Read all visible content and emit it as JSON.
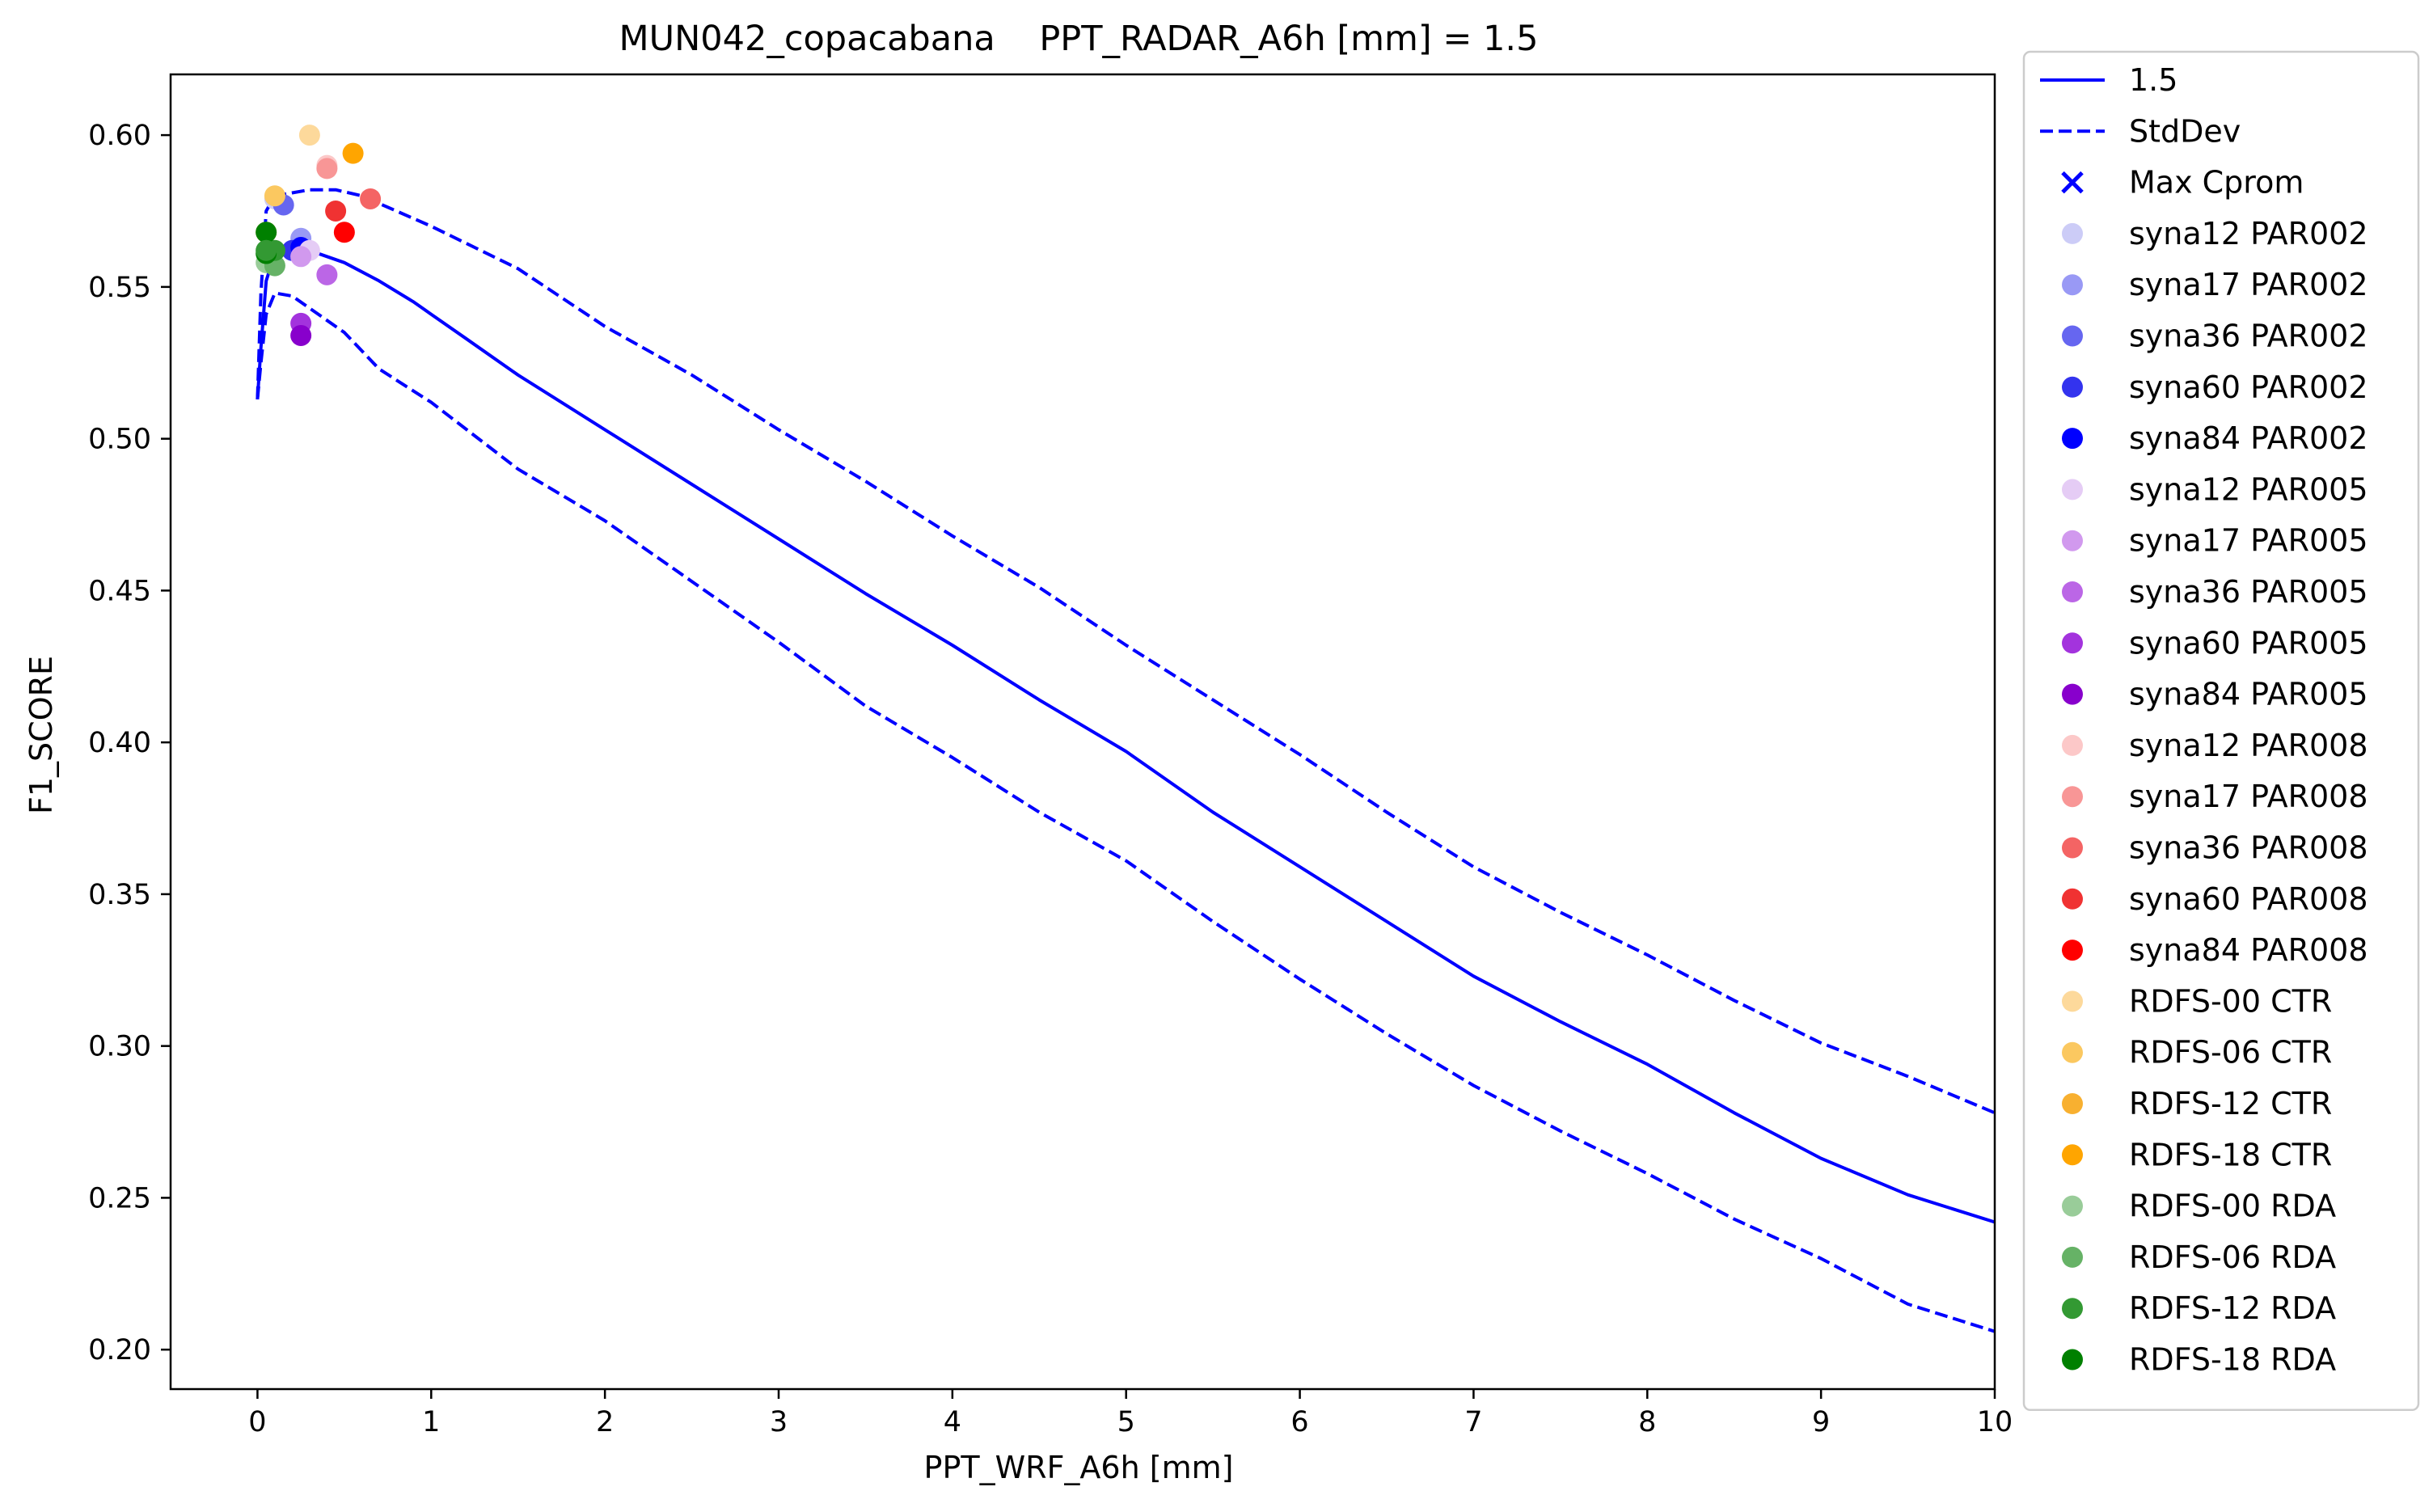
{
  "chart_data": {
    "type": "line",
    "title": "MUN042_copacabana    PPT_RADAR_A6h [mm] = 1.5",
    "xlabel": "PPT_WRF_A6h [mm]",
    "ylabel": "F1_SCORE",
    "xlim": [
      -0.5,
      10
    ],
    "ylim": [
      0.187,
      0.62
    ],
    "xticks": [
      0,
      1,
      2,
      3,
      4,
      5,
      6,
      7,
      8,
      9,
      10
    ],
    "yticks": [
      0.2,
      0.25,
      0.3,
      0.35,
      0.4,
      0.45,
      0.5,
      0.55,
      0.6
    ],
    "xtick_labels": [
      "0",
      "1",
      "2",
      "3",
      "4",
      "5",
      "6",
      "7",
      "8",
      "9",
      "10"
    ],
    "ytick_labels": [
      "0.20",
      "0.25",
      "0.30",
      "0.35",
      "0.40",
      "0.45",
      "0.50",
      "0.55",
      "0.60"
    ],
    "legend_position": "outside-right",
    "series": [
      {
        "name": "1.5",
        "style": "solid",
        "color": "#0000ff",
        "points": [
          [
            0.0,
            0.513
          ],
          [
            0.02,
            0.53
          ],
          [
            0.05,
            0.552
          ],
          [
            0.1,
            0.561
          ],
          [
            0.2,
            0.563
          ],
          [
            0.3,
            0.562
          ],
          [
            0.5,
            0.558
          ],
          [
            0.7,
            0.552
          ],
          [
            0.9,
            0.545
          ],
          [
            1.0,
            0.541
          ],
          [
            1.2,
            0.533
          ],
          [
            1.5,
            0.521
          ],
          [
            2.0,
            0.503
          ],
          [
            2.5,
            0.485
          ],
          [
            3.0,
            0.467
          ],
          [
            3.5,
            0.449
          ],
          [
            4.0,
            0.432
          ],
          [
            4.5,
            0.414
          ],
          [
            5.0,
            0.397
          ],
          [
            5.5,
            0.377
          ],
          [
            6.0,
            0.359
          ],
          [
            6.5,
            0.341
          ],
          [
            7.0,
            0.323
          ],
          [
            7.5,
            0.308
          ],
          [
            8.0,
            0.294
          ],
          [
            8.5,
            0.278
          ],
          [
            9.0,
            0.263
          ],
          [
            9.5,
            0.251
          ],
          [
            10.0,
            0.242
          ]
        ]
      },
      {
        "name": "StdDev",
        "style": "dashed",
        "color": "#0000ff",
        "points": [
          [
            0.0,
            0.513
          ],
          [
            0.02,
            0.548
          ],
          [
            0.05,
            0.575
          ],
          [
            0.1,
            0.58
          ],
          [
            0.2,
            0.581
          ],
          [
            0.3,
            0.582
          ],
          [
            0.45,
            0.582
          ],
          [
            0.6,
            0.58
          ],
          [
            0.8,
            0.575
          ],
          [
            1.0,
            0.57
          ],
          [
            1.5,
            0.556
          ],
          [
            2.0,
            0.537
          ],
          [
            2.5,
            0.521
          ],
          [
            3.0,
            0.503
          ],
          [
            3.5,
            0.486
          ],
          [
            4.0,
            0.468
          ],
          [
            4.5,
            0.451
          ],
          [
            5.0,
            0.432
          ],
          [
            5.5,
            0.414
          ],
          [
            6.0,
            0.396
          ],
          [
            6.5,
            0.377
          ],
          [
            7.0,
            0.359
          ],
          [
            7.5,
            0.344
          ],
          [
            8.0,
            0.33
          ],
          [
            8.5,
            0.315
          ],
          [
            9.0,
            0.301
          ],
          [
            9.5,
            0.29
          ],
          [
            10.0,
            0.278
          ]
        ]
      },
      {
        "name": "",
        "style": "dashed",
        "color": "#0000ff",
        "points": [
          [
            0.0,
            0.513
          ],
          [
            0.02,
            0.525
          ],
          [
            0.05,
            0.541
          ],
          [
            0.1,
            0.548
          ],
          [
            0.2,
            0.547
          ],
          [
            0.3,
            0.543
          ],
          [
            0.5,
            0.535
          ],
          [
            0.7,
            0.523
          ],
          [
            1.0,
            0.512
          ],
          [
            1.5,
            0.49
          ],
          [
            2.0,
            0.473
          ],
          [
            2.5,
            0.453
          ],
          [
            3.0,
            0.433
          ],
          [
            3.5,
            0.412
          ],
          [
            4.0,
            0.395
          ],
          [
            4.5,
            0.377
          ],
          [
            5.0,
            0.361
          ],
          [
            5.5,
            0.341
          ],
          [
            6.0,
            0.322
          ],
          [
            6.5,
            0.304
          ],
          [
            7.0,
            0.287
          ],
          [
            7.5,
            0.272
          ],
          [
            8.0,
            0.258
          ],
          [
            8.5,
            0.243
          ],
          [
            9.0,
            0.23
          ],
          [
            9.5,
            0.215
          ],
          [
            10.0,
            0.206
          ]
        ]
      }
    ],
    "max_cprom": {
      "name": "Max Cprom",
      "x": 0.25,
      "y": 0.564,
      "color": "#0000ff"
    },
    "scatter": [
      {
        "name": "syna12 PAR002",
        "color": "#ccccf7",
        "x": 0.1,
        "y": 0.579
      },
      {
        "name": "syna17 PAR002",
        "color": "#9999f5",
        "x": 0.25,
        "y": 0.566
      },
      {
        "name": "syna36 PAR002",
        "color": "#6666f0",
        "x": 0.15,
        "y": 0.577
      },
      {
        "name": "syna60 PAR002",
        "color": "#3333ee",
        "x": 0.2,
        "y": 0.562
      },
      {
        "name": "syna84 PAR002",
        "color": "#0000ff",
        "x": 0.25,
        "y": 0.563
      },
      {
        "name": "syna12 PAR005",
        "color": "#e5ccf5",
        "x": 0.3,
        "y": 0.562
      },
      {
        "name": "syna17 PAR005",
        "color": "#d199ee",
        "x": 0.25,
        "y": 0.56
      },
      {
        "name": "syna36 PAR005",
        "color": "#bb66e6",
        "x": 0.4,
        "y": 0.554
      },
      {
        "name": "syna60 PAR005",
        "color": "#a333dd",
        "x": 0.25,
        "y": 0.538
      },
      {
        "name": "syna84 PAR005",
        "color": "#8800cc",
        "x": 0.25,
        "y": 0.534
      },
      {
        "name": "syna12 PAR008",
        "color": "#fcc8c8",
        "x": 0.4,
        "y": 0.59
      },
      {
        "name": "syna17 PAR008",
        "color": "#f89696",
        "x": 0.4,
        "y": 0.589
      },
      {
        "name": "syna36 PAR008",
        "color": "#f46464",
        "x": 0.65,
        "y": 0.579
      },
      {
        "name": "syna60 PAR008",
        "color": "#f03232",
        "x": 0.45,
        "y": 0.575
      },
      {
        "name": "syna84 PAR008",
        "color": "#ff0000",
        "x": 0.5,
        "y": 0.568
      },
      {
        "name": "RDFS-00 CTR",
        "color": "#fdd99b",
        "x": 0.3,
        "y": 0.6
      },
      {
        "name": "RDFS-06 CTR",
        "color": "#fbc860",
        "x": 0.1,
        "y": 0.58
      },
      {
        "name": "RDFS-12 CTR",
        "color": "#f8b030",
        "x": 0.05,
        "y": 0.568
      },
      {
        "name": "RDFS-18 CTR",
        "color": "#ffa500",
        "x": 0.55,
        "y": 0.594
      },
      {
        "name": "RDFS-00 RDA",
        "color": "#99cc99",
        "x": 0.05,
        "y": 0.558
      },
      {
        "name": "RDFS-06 RDA",
        "color": "#66b266",
        "x": 0.1,
        "y": 0.557
      },
      {
        "name": "RDFS-12 RDA",
        "color": "#339933",
        "x": 0.1,
        "y": 0.562
      },
      {
        "name": "RDFS-18 RDA",
        "color": "#008000",
        "x": 0.05,
        "y": 0.568
      }
    ],
    "extra_points": [
      {
        "color": "#008000",
        "x": 0.05,
        "y": 0.561
      },
      {
        "color": "#339933",
        "x": 0.05,
        "y": 0.562
      }
    ]
  }
}
